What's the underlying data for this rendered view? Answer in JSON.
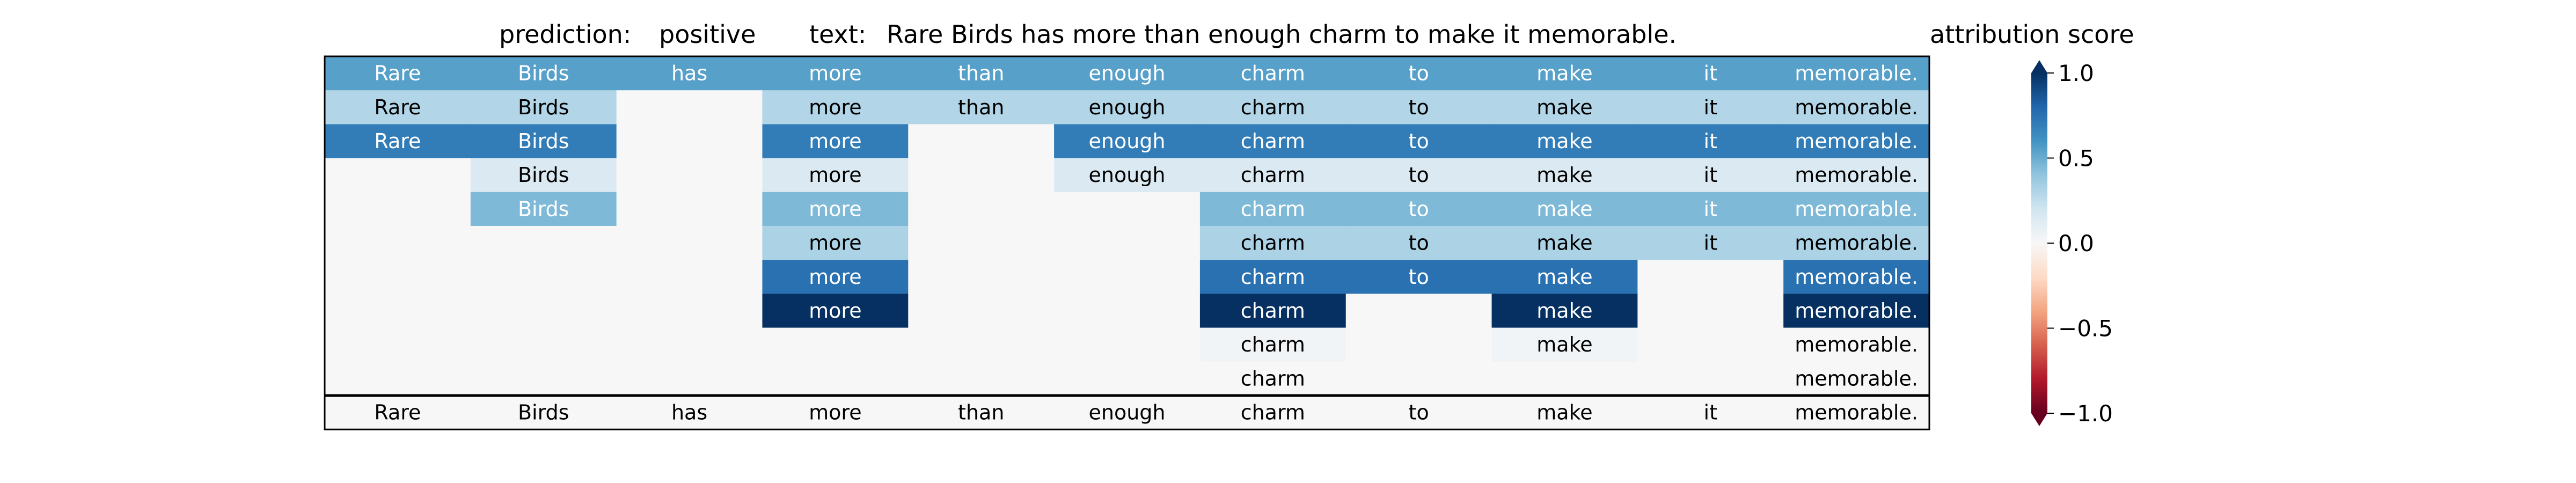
{
  "chart_data": {
    "type": "heatmap",
    "header": {
      "prediction_label": "prediction:",
      "prediction_value": "positive",
      "text_label": "text:",
      "text_value": "Rare Birds has more than enough charm to make it memorable."
    },
    "columns": [
      "Rare",
      "Birds",
      "has",
      "more",
      "than",
      "enough",
      "charm",
      "to",
      "make",
      "it",
      "memorable."
    ],
    "rows": [
      {
        "cells": [
          {
            "text": "Rare",
            "value": 0.55
          },
          {
            "text": "Birds",
            "value": 0.55
          },
          {
            "text": "has",
            "value": 0.55
          },
          {
            "text": "more",
            "value": 0.55
          },
          {
            "text": "than",
            "value": 0.55
          },
          {
            "text": "enough",
            "value": 0.55
          },
          {
            "text": "charm",
            "value": 0.55
          },
          {
            "text": "to",
            "value": 0.55
          },
          {
            "text": "make",
            "value": 0.55
          },
          {
            "text": "it",
            "value": 0.55
          },
          {
            "text": "memorable.",
            "value": 0.55
          }
        ]
      },
      {
        "cells": [
          {
            "text": "Rare",
            "value": 0.3
          },
          {
            "text": "Birds",
            "value": 0.3
          },
          {
            "text": "",
            "value": 0
          },
          {
            "text": "more",
            "value": 0.3
          },
          {
            "text": "than",
            "value": 0.3
          },
          {
            "text": "enough",
            "value": 0.3
          },
          {
            "text": "charm",
            "value": 0.3
          },
          {
            "text": "to",
            "value": 0.3
          },
          {
            "text": "make",
            "value": 0.3
          },
          {
            "text": "it",
            "value": 0.3
          },
          {
            "text": "memorable.",
            "value": 0.3
          }
        ]
      },
      {
        "cells": [
          {
            "text": "Rare",
            "value": 0.7
          },
          {
            "text": "Birds",
            "value": 0.7
          },
          {
            "text": "",
            "value": 0
          },
          {
            "text": "more",
            "value": 0.7
          },
          {
            "text": "",
            "value": 0
          },
          {
            "text": "enough",
            "value": 0.7
          },
          {
            "text": "charm",
            "value": 0.7
          },
          {
            "text": "to",
            "value": 0.7
          },
          {
            "text": "make",
            "value": 0.7
          },
          {
            "text": "it",
            "value": 0.7
          },
          {
            "text": "memorable.",
            "value": 0.7
          }
        ]
      },
      {
        "cells": [
          {
            "text": "",
            "value": 0
          },
          {
            "text": "Birds",
            "value": 0.15
          },
          {
            "text": "",
            "value": 0
          },
          {
            "text": "more",
            "value": 0.15
          },
          {
            "text": "",
            "value": 0
          },
          {
            "text": "enough",
            "value": 0.15
          },
          {
            "text": "charm",
            "value": 0.15
          },
          {
            "text": "to",
            "value": 0.15
          },
          {
            "text": "make",
            "value": 0.15
          },
          {
            "text": "it",
            "value": 0.15
          },
          {
            "text": "memorable.",
            "value": 0.15
          }
        ]
      },
      {
        "cells": [
          {
            "text": "",
            "value": 0
          },
          {
            "text": "Birds",
            "value": 0.45
          },
          {
            "text": "",
            "value": 0
          },
          {
            "text": "more",
            "value": 0.45
          },
          {
            "text": "",
            "value": 0
          },
          {
            "text": "",
            "value": 0
          },
          {
            "text": "charm",
            "value": 0.45
          },
          {
            "text": "to",
            "value": 0.45
          },
          {
            "text": "make",
            "value": 0.45
          },
          {
            "text": "it",
            "value": 0.45
          },
          {
            "text": "memorable.",
            "value": 0.45
          }
        ]
      },
      {
        "cells": [
          {
            "text": "",
            "value": 0
          },
          {
            "text": "",
            "value": 0
          },
          {
            "text": "",
            "value": 0
          },
          {
            "text": "more",
            "value": 0.32
          },
          {
            "text": "",
            "value": 0
          },
          {
            "text": "",
            "value": 0
          },
          {
            "text": "charm",
            "value": 0.32
          },
          {
            "text": "to",
            "value": 0.32
          },
          {
            "text": "make",
            "value": 0.32
          },
          {
            "text": "it",
            "value": 0.32
          },
          {
            "text": "memorable.",
            "value": 0.32
          }
        ]
      },
      {
        "cells": [
          {
            "text": "",
            "value": 0
          },
          {
            "text": "",
            "value": 0
          },
          {
            "text": "",
            "value": 0
          },
          {
            "text": "more",
            "value": 0.75
          },
          {
            "text": "",
            "value": 0
          },
          {
            "text": "",
            "value": 0
          },
          {
            "text": "charm",
            "value": 0.75
          },
          {
            "text": "to",
            "value": 0.75
          },
          {
            "text": "make",
            "value": 0.75
          },
          {
            "text": "",
            "value": 0
          },
          {
            "text": "memorable.",
            "value": 0.75
          }
        ]
      },
      {
        "cells": [
          {
            "text": "",
            "value": 0
          },
          {
            "text": "",
            "value": 0
          },
          {
            "text": "",
            "value": 0
          },
          {
            "text": "more",
            "value": 1.0
          },
          {
            "text": "",
            "value": 0
          },
          {
            "text": "",
            "value": 0
          },
          {
            "text": "charm",
            "value": 1.0
          },
          {
            "text": "",
            "value": 0
          },
          {
            "text": "make",
            "value": 1.0
          },
          {
            "text": "",
            "value": 0
          },
          {
            "text": "memorable.",
            "value": 1.0
          }
        ]
      },
      {
        "cells": [
          {
            "text": "",
            "value": 0
          },
          {
            "text": "",
            "value": 0
          },
          {
            "text": "",
            "value": 0
          },
          {
            "text": "",
            "value": 0
          },
          {
            "text": "",
            "value": 0
          },
          {
            "text": "",
            "value": 0
          },
          {
            "text": "charm",
            "value": 0.03
          },
          {
            "text": "",
            "value": 0
          },
          {
            "text": "make",
            "value": 0.03
          },
          {
            "text": "",
            "value": 0
          },
          {
            "text": "memorable.",
            "value": 0.0
          }
        ]
      },
      {
        "cells": [
          {
            "text": "",
            "value": 0
          },
          {
            "text": "",
            "value": 0
          },
          {
            "text": "",
            "value": 0
          },
          {
            "text": "",
            "value": 0
          },
          {
            "text": "",
            "value": 0
          },
          {
            "text": "",
            "value": 0
          },
          {
            "text": "charm",
            "value": 0.0
          },
          {
            "text": "",
            "value": 0
          },
          {
            "text": "",
            "value": 0
          },
          {
            "text": "",
            "value": 0
          },
          {
            "text": "memorable.",
            "value": 0.0
          }
        ]
      }
    ],
    "footer_row": [
      "Rare",
      "Birds",
      "has",
      "more",
      "than",
      "enough",
      "charm",
      "to",
      "make",
      "it",
      "memorable."
    ],
    "colorbar": {
      "title": "attribution score",
      "min": -1.0,
      "max": 1.0,
      "ticks": [
        1.0,
        0.5,
        0.0,
        -0.5,
        -1.0
      ],
      "tick_labels": [
        "1.0",
        "0.5",
        "0.0",
        "−0.5",
        "−1.0"
      ],
      "colormap": "RdBu",
      "extend": "both"
    }
  }
}
